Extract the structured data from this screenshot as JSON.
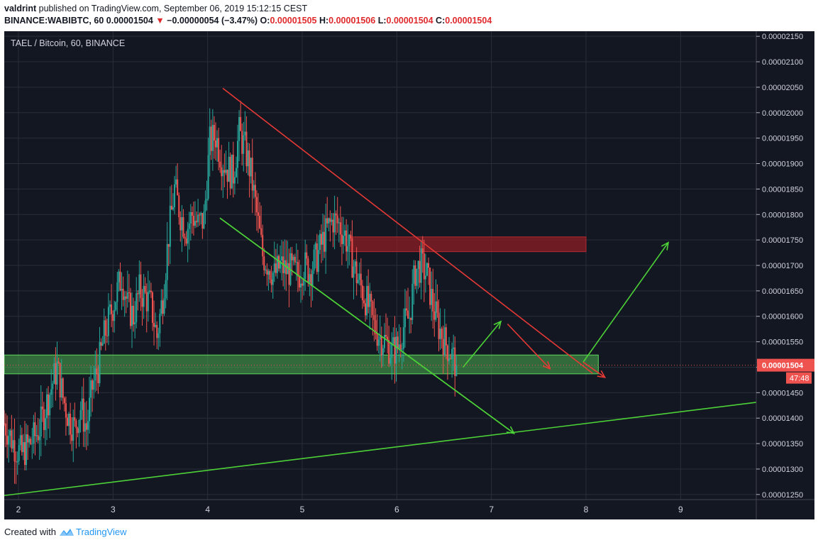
{
  "header": {
    "author": "valdrint",
    "published_text": "published on TradingView.com, September 06, 2019 15:12:15 CEST",
    "symbol": "BINANCE:WABIBTC, 60",
    "price": "0.00001504",
    "change_arrow": "▼",
    "change": "−0.00000054 (−3.47%)",
    "o_label": "O:",
    "o_value": "0.00001505",
    "h_label": "H:",
    "h_value": "0.00001506",
    "l_label": "L:",
    "l_value": "0.00001504",
    "c_label": "C:",
    "c_value": "0.00001504"
  },
  "chart_data": {
    "type": "candlestick",
    "title": "TAEL / Bitcoin, 60, BINANCE",
    "x_ticks": [
      "2",
      "3",
      "4",
      "5",
      "6",
      "7",
      "8",
      "9"
    ],
    "x_tick_values": [
      2,
      3,
      4,
      5,
      6,
      7,
      8,
      9
    ],
    "xlim": [
      1.85,
      9.8
    ],
    "y_ticks": [
      "0.00002150",
      "0.00002100",
      "0.00002050",
      "0.00002000",
      "0.00001950",
      "0.00001900",
      "0.00001850",
      "0.00001800",
      "0.00001750",
      "0.00001700",
      "0.00001650",
      "0.00001600",
      "0.00001550",
      "0.00001500",
      "0.00001450",
      "0.00001400",
      "0.00001350",
      "0.00001300",
      "0.00001250"
    ],
    "ylim": [
      1.24e-05,
      2.16e-05
    ],
    "last_price": "0.00001504",
    "countdown": "47:48",
    "grid": true,
    "colors": {
      "up": "#26a69a",
      "down": "#ef5350",
      "background": "#131722",
      "grid": "#2a2e39"
    },
    "close_series": [
      1.39e-05,
      1.365e-05,
      1.34e-05,
      1.33e-05,
      1.345e-05,
      1.36e-05,
      1.38e-05,
      1.42e-05,
      1.46e-05,
      1.5e-05,
      1.44e-05,
      1.4e-05,
      1.38e-05,
      1.42e-05,
      1.38e-05,
      1.46e-05,
      1.5e-05,
      1.56e-05,
      1.6e-05,
      1.64e-05,
      1.68e-05,
      1.62e-05,
      1.6e-05,
      1.65e-05,
      1.64e-05,
      1.62e-05,
      1.56e-05,
      1.64e-05,
      1.76e-05,
      1.85e-05,
      1.8e-05,
      1.77e-05,
      1.8e-05,
      1.78e-05,
      1.79e-05,
      1.94e-05,
      1.955e-05,
      1.91e-05,
      1.89e-05,
      1.88e-05,
      1.96e-05,
      1.93e-05,
      1.88e-05,
      1.8e-05,
      1.72e-05,
      1.7e-05,
      1.68e-05,
      1.7e-05,
      1.69e-05,
      1.69e-05,
      1.68e-05,
      1.7e-05,
      1.69e-05,
      1.71e-05,
      1.74e-05,
      1.77e-05,
      1.79e-05,
      1.78e-05,
      1.76e-05,
      1.72e-05,
      1.68e-05,
      1.65e-05,
      1.62e-05,
      1.58e-05,
      1.56e-05,
      1.55e-05,
      1.53e-05,
      1.54e-05,
      1.58e-05,
      1.6e-05,
      1.69e-05,
      1.7e-05,
      1.68e-05,
      1.62e-05,
      1.58e-05,
      1.55e-05,
      1.53e-05,
      1.504e-05
    ],
    "close_x_range": [
      1.85,
      6.63
    ],
    "support_zone": {
      "y_low": 1.487e-05,
      "y_high": 1.524e-05,
      "x_start": 1.85,
      "x_end": 8.13
    },
    "resistance_zone": {
      "y_low": 1.727e-05,
      "y_high": 1.756e-05,
      "x_start": 5.5,
      "x_end": 8.0
    },
    "descending_resistance_line": {
      "x1": 4.16,
      "y1": 2.048e-05,
      "x2": 8.07,
      "y2": 1.488e-05
    },
    "descending_support_line": {
      "x1": 4.13,
      "y1": 1.793e-05,
      "x2": 7.24,
      "y2": 1.37e-05
    },
    "ascending_support_line": {
      "x1": 1.85,
      "y1": 1.248e-05,
      "x2": 9.8,
      "y2": 1.431e-05
    },
    "projection_arrows_up": [
      {
        "x1": 6.7,
        "y1": 1.5e-05,
        "x2": 7.1,
        "y2": 1.59e-05
      },
      {
        "x1": 7.97,
        "y1": 1.51e-05,
        "x2": 8.87,
        "y2": 1.745e-05
      }
    ],
    "projection_arrows_down": [
      {
        "x1": 7.17,
        "y1": 1.585e-05,
        "x2": 7.62,
        "y2": 1.497e-05
      },
      {
        "x1": 7.97,
        "y1": 1.51e-05,
        "x2": 8.2,
        "y2": 1.48e-05
      }
    ]
  },
  "footer": {
    "created_with": "Created with",
    "brand": "TradingView"
  }
}
